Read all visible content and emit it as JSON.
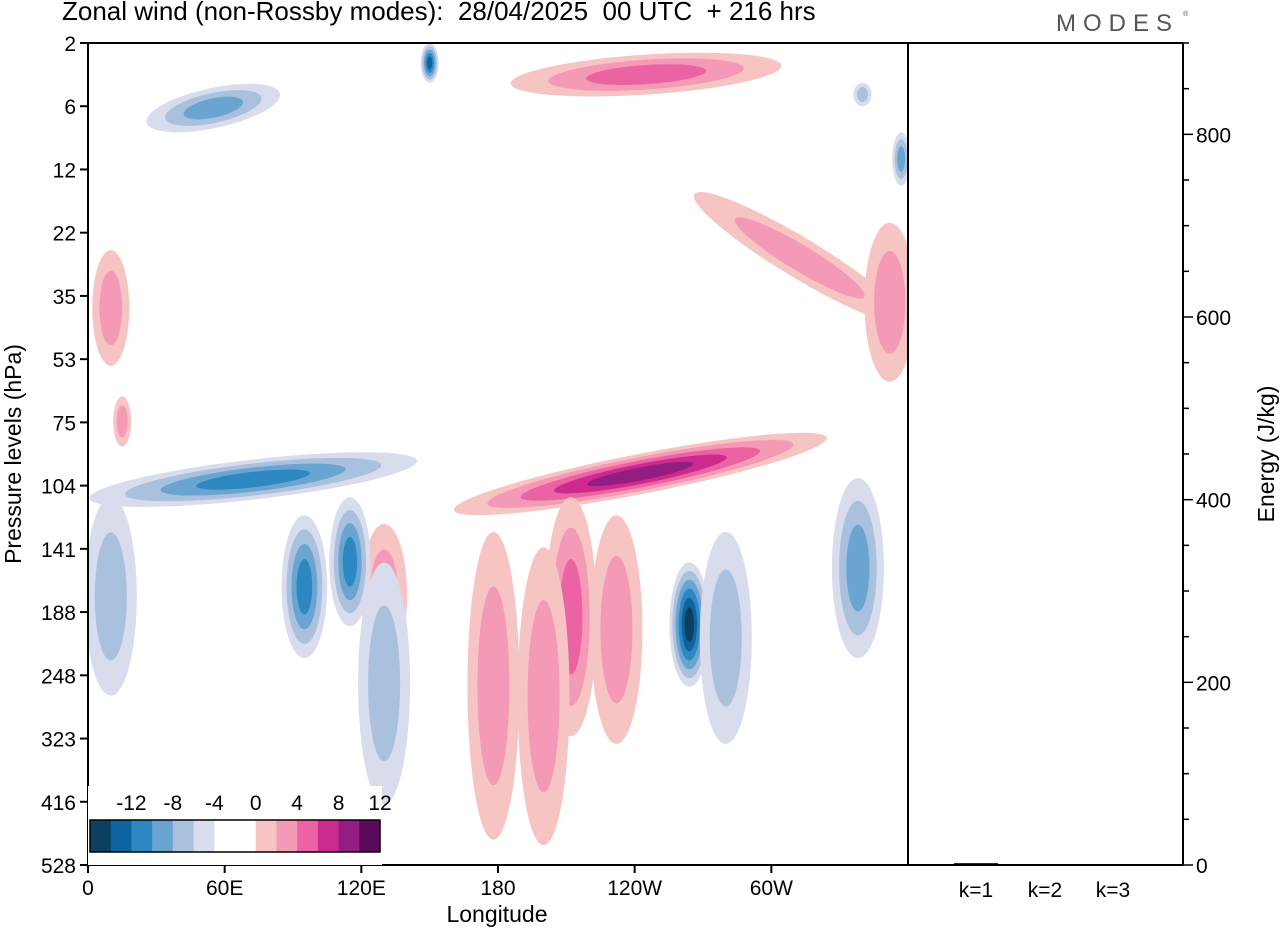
{
  "title": "Zonal wind (non-Rossby modes):  28/04/2025  00 UTC  + 216 hrs",
  "brand": "MODES",
  "brand_mark": "®",
  "chart_data": [
    {
      "type": "heatmap",
      "title": "Zonal wind (non-Rossby modes):  28/04/2025  00 UTC  + 216 hrs",
      "xlabel": "Longitude",
      "ylabel": "Pressure levels (hPa)",
      "x_ticks": [
        "0",
        "60E",
        "120E",
        "180",
        "120W",
        "60W"
      ],
      "x_tick_values": [
        0,
        60,
        120,
        180,
        240,
        300
      ],
      "xlim": [
        0,
        360
      ],
      "y_ticks": [
        2,
        6,
        12,
        22,
        35,
        53,
        75,
        104,
        141,
        188,
        248,
        323,
        416,
        528
      ],
      "y_scale": "pressure levels, 2 hPa at top, 528 hPa at bottom",
      "colorbar": {
        "labels": [
          "-12",
          "-8",
          "-4",
          "0",
          "4",
          "8",
          "12"
        ],
        "colors": [
          "#0d3f5f",
          "#0d64a0",
          "#2d88c2",
          "#6aa5d1",
          "#a9c1dd",
          "#d9dcec",
          "#ffffff",
          "#ffffff",
          "#f7c4c4",
          "#f49ab7",
          "#ec63a3",
          "#cc2a8e",
          "#931d80",
          "#5a0a5a"
        ],
        "placement": "bottom-left"
      },
      "features": [
        {
          "sign": "positive",
          "shape": "band",
          "from": [
            165,
            116
          ],
          "to": [
            320,
            82
          ],
          "peak": 9
        },
        {
          "sign": "positive",
          "shape": "blob",
          "lon": 212,
          "p_range": [
            110,
            320
          ],
          "peak": 6
        },
        {
          "sign": "positive",
          "shape": "blob",
          "lon": 232,
          "p_range": [
            120,
            330
          ],
          "peak": 4
        },
        {
          "sign": "positive",
          "shape": "blob",
          "lon": 178,
          "p_range": [
            130,
            480
          ],
          "peak": 3
        },
        {
          "sign": "positive",
          "shape": "blob",
          "lon": 200,
          "p_range": [
            140,
            490
          ],
          "peak": 4
        },
        {
          "sign": "positive",
          "shape": "blob",
          "lon": 130,
          "p_range": [
            125,
            240
          ],
          "peak": 4
        },
        {
          "sign": "positive",
          "shape": "band",
          "from": [
            190,
            4
          ],
          "to": [
            300,
            3
          ],
          "peak": 6
        },
        {
          "sign": "positive",
          "shape": "band",
          "from": [
            270,
            16
          ],
          "to": [
            355,
            40
          ],
          "peak": 3
        },
        {
          "sign": "positive",
          "shape": "blob",
          "lon": 352,
          "p_range": [
            20,
            60
          ],
          "peak": 3
        },
        {
          "sign": "positive",
          "shape": "blob",
          "lon": 10,
          "p_range": [
            25,
            55
          ],
          "peak": 3
        },
        {
          "sign": "positive",
          "shape": "blob",
          "lon": 15,
          "p_range": [
            65,
            85
          ],
          "peak": 4
        },
        {
          "sign": "negative",
          "shape": "blob",
          "lon": 264,
          "p_range": [
            150,
            260
          ],
          "peak": -12
        },
        {
          "sign": "negative",
          "shape": "blob",
          "lon": 280,
          "p_range": [
            130,
            330
          ],
          "peak": -4
        },
        {
          "sign": "negative",
          "shape": "blob",
          "lon": 338,
          "p_range": [
            100,
            230
          ],
          "peak": -5
        },
        {
          "sign": "negative",
          "shape": "band",
          "from": [
            5,
            110
          ],
          "to": [
            140,
            92
          ],
          "peak": -7
        },
        {
          "sign": "negative",
          "shape": "blob",
          "lon": 95,
          "p_range": [
            120,
            230
          ],
          "peak": -7
        },
        {
          "sign": "negative",
          "shape": "blob",
          "lon": 115,
          "p_range": [
            110,
            200
          ],
          "peak": -8
        },
        {
          "sign": "negative",
          "shape": "blob",
          "lon": 130,
          "p_range": [
            150,
            420
          ],
          "peak": -3
        },
        {
          "sign": "negative",
          "shape": "blob",
          "lon": 10,
          "p_range": [
            110,
            270
          ],
          "peak": -3
        },
        {
          "sign": "negative",
          "shape": "band",
          "from": [
            30,
            7
          ],
          "to": [
            80,
            5
          ],
          "peak": -6
        },
        {
          "sign": "negative",
          "shape": "blob",
          "lon": 150,
          "p_range": [
            2,
            4
          ],
          "peak": -10
        },
        {
          "sign": "negative",
          "shape": "blob",
          "lon": 340,
          "p_range": [
            4,
            6
          ],
          "peak": -4
        },
        {
          "sign": "negative",
          "shape": "blob",
          "lon": 357,
          "p_range": [
            8,
            14
          ],
          "peak": -5
        }
      ]
    },
    {
      "type": "bar",
      "categories": [
        "k=1",
        "k=2",
        "k=3"
      ],
      "values": [
        2,
        1,
        0.5
      ],
      "ylabel": "Energy (J/kg)",
      "ylim": [
        0,
        900
      ],
      "y_ticks": [
        0,
        200,
        400,
        600,
        800
      ]
    }
  ]
}
